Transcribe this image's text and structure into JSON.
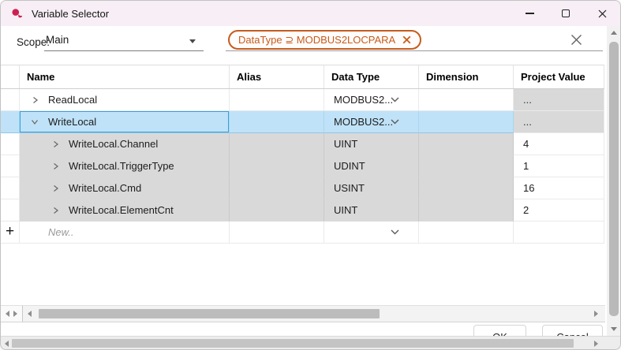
{
  "window": {
    "title": "Variable Selector"
  },
  "toolbar": {
    "scope_label": "Scope:",
    "scope_value": "Main",
    "filter_chip_text": "DataType ⊇ MODBUS2LOCPARA"
  },
  "table": {
    "columns": [
      "Name",
      "Alias",
      "Data Type",
      "Dimension",
      "Project Value"
    ],
    "rows": [
      {
        "name": "ReadLocal",
        "alias": "",
        "data_type": "MODBUS2...",
        "dimension": "",
        "project_value": "...",
        "level": 0,
        "expanded": false,
        "selected": false,
        "shaded": false,
        "type_dropdown": true,
        "value_shaded": true
      },
      {
        "name": "WriteLocal",
        "alias": "",
        "data_type": "MODBUS2...",
        "dimension": "",
        "project_value": "...",
        "level": 0,
        "expanded": true,
        "selected": true,
        "shaded": false,
        "type_dropdown": true,
        "value_shaded": true
      },
      {
        "name": "WriteLocal.Channel",
        "alias": "",
        "data_type": "UINT",
        "dimension": "",
        "project_value": "4",
        "level": 1,
        "expanded": false,
        "selected": false,
        "shaded": true,
        "type_dropdown": false,
        "value_shaded": false
      },
      {
        "name": "WriteLocal.TriggerType",
        "alias": "",
        "data_type": "UDINT",
        "dimension": "",
        "project_value": "1",
        "level": 1,
        "expanded": false,
        "selected": false,
        "shaded": true,
        "type_dropdown": false,
        "value_shaded": false
      },
      {
        "name": "WriteLocal.Cmd",
        "alias": "",
        "data_type": "USINT",
        "dimension": "",
        "project_value": "16",
        "level": 1,
        "expanded": false,
        "selected": false,
        "shaded": true,
        "type_dropdown": false,
        "value_shaded": false
      },
      {
        "name": "WriteLocal.ElementCnt",
        "alias": "",
        "data_type": "UINT",
        "dimension": "",
        "project_value": "2",
        "level": 1,
        "expanded": false,
        "selected": false,
        "shaded": true,
        "type_dropdown": false,
        "value_shaded": false
      }
    ],
    "new_row_label": "New..",
    "new_row_plus": "+"
  },
  "footer": {
    "ok_label": "OK",
    "cancel_label": "Cancel"
  },
  "colors": {
    "titlebar": "#f7eff5",
    "selection": "#bfe2f8",
    "selection_border": "#38a0da",
    "shaded_cell": "#d9d9d9",
    "chip_orange": "#c65c1e",
    "app_icon_red": "#ce2050"
  }
}
